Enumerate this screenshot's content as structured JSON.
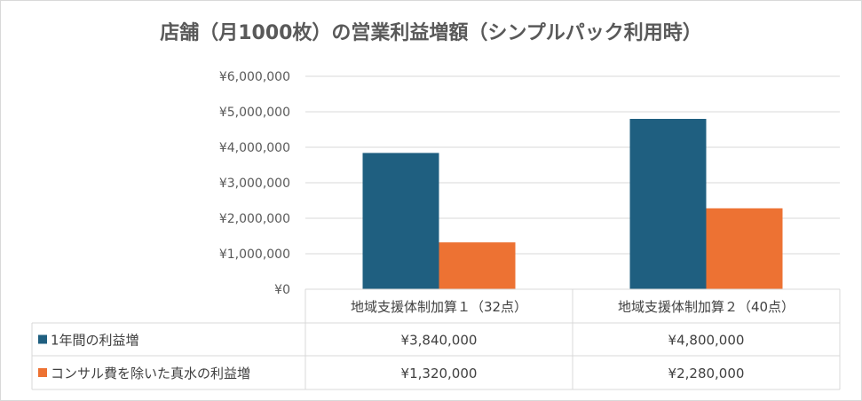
{
  "chart_data": {
    "type": "bar",
    "title": "店舗（月1000枚）の営業利益増額（シンプルパック利用時）",
    "categories": [
      "地域支援体制加算１（32点）",
      "地域支援体制加算２（40点）"
    ],
    "series": [
      {
        "name": "1年間の利益増",
        "color": "#1f5f80",
        "values": [
          3840000,
          4800000
        ],
        "labels": [
          "¥3,840,000",
          "¥4,800,000"
        ]
      },
      {
        "name": "コンサル費を除いた真水の利益増",
        "color": "#ed7233",
        "values": [
          1320000,
          2280000
        ],
        "labels": [
          "¥1,320,000",
          "¥2,280,000"
        ]
      }
    ],
    "ylim": [
      0,
      6000000
    ],
    "yticks": [
      0,
      1000000,
      2000000,
      3000000,
      4000000,
      5000000,
      6000000
    ],
    "ytick_labels": [
      "¥0",
      "¥1,000,000",
      "¥2,000,000",
      "¥3,000,000",
      "¥4,000,000",
      "¥5,000,000",
      "¥6,000,000"
    ],
    "grid": true,
    "legend": "data-table",
    "gridline_color": "#d9d9d9"
  }
}
